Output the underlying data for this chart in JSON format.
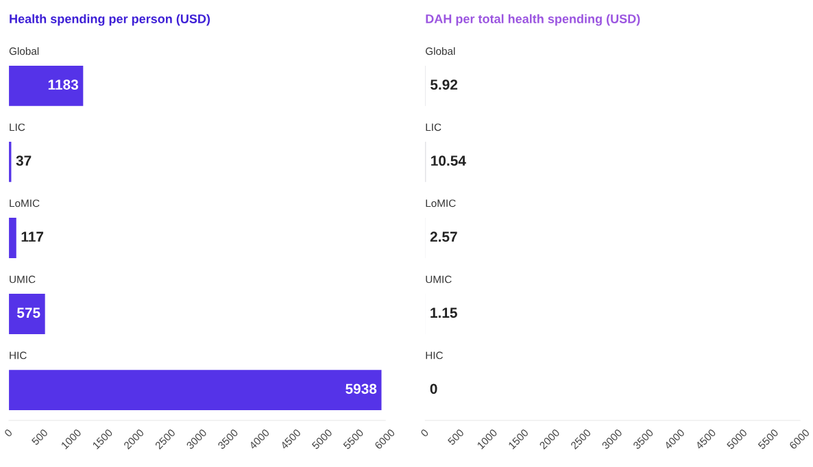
{
  "chart_data": [
    {
      "type": "bar",
      "orientation": "horizontal",
      "title": "Health spending per person (USD)",
      "categories": [
        "Global",
        "LIC",
        "LoMIC",
        "UMIC",
        "HIC"
      ],
      "series": [
        {
          "color": "#5533e8",
          "values": [
            1183,
            37,
            117,
            575,
            5938
          ]
        }
      ],
      "data_labels": true,
      "xlim": [
        0,
        6000
      ],
      "xticks": [
        0,
        500,
        1000,
        1500,
        2000,
        2500,
        3000,
        3500,
        4000,
        4500,
        5000,
        5500,
        6000
      ],
      "grid": false,
      "legend": false
    },
    {
      "type": "bar",
      "orientation": "horizontal",
      "title": "DAH per total health spending (USD)",
      "categories": [
        "Global",
        "LIC",
        "LoMIC",
        "UMIC",
        "HIC"
      ],
      "series": [
        {
          "color": "#c8c8d0",
          "values": [
            5.92,
            10.54,
            2.57,
            1.15,
            0
          ]
        }
      ],
      "data_labels": true,
      "xlim": [
        0,
        6000
      ],
      "xticks": [
        0,
        500,
        1000,
        1500,
        2000,
        2500,
        3000,
        3500,
        4000,
        4500,
        5000,
        5500,
        6000
      ],
      "grid": false,
      "legend": false
    }
  ]
}
